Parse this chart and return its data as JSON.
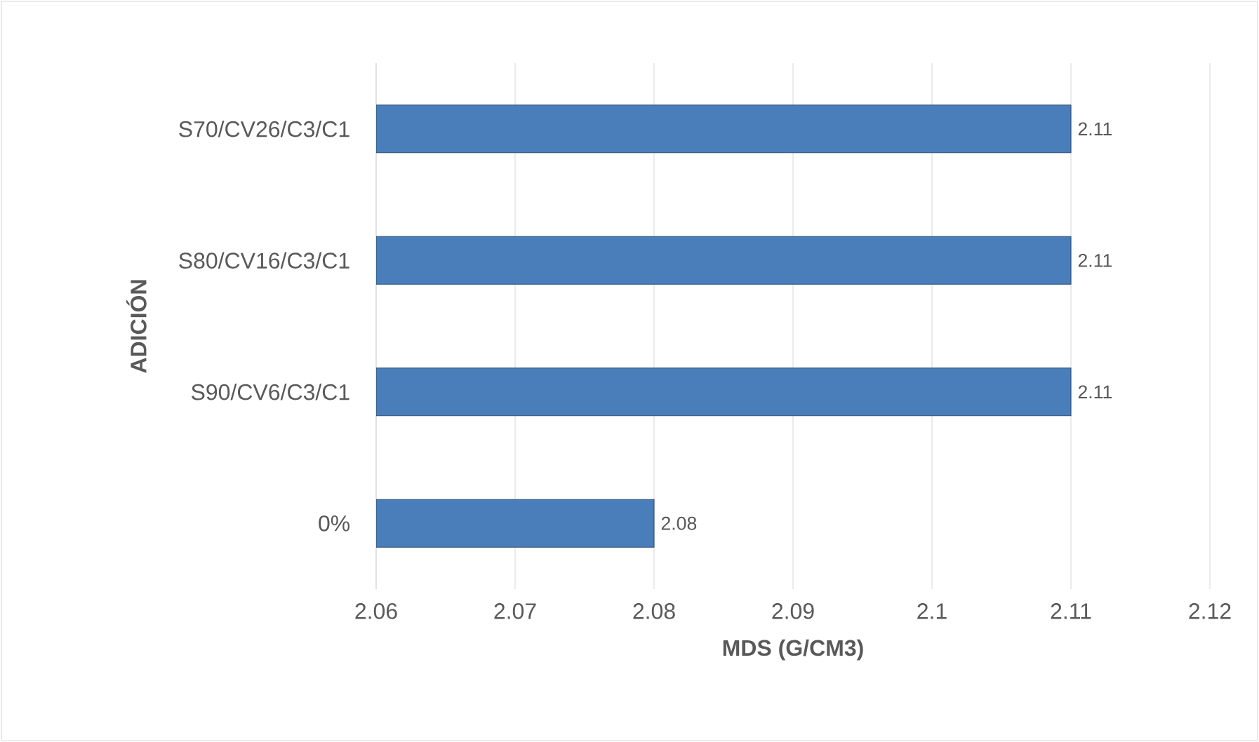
{
  "chart_data": {
    "type": "bar",
    "orientation": "horizontal",
    "xlabel": "MDS (G/CM3)",
    "ylabel": "ADICIÓN",
    "categories": [
      "S70/CV26/C3/C1",
      "S80/CV16/C3/C1",
      "S90/CV6/C3/C1",
      "0%"
    ],
    "values": [
      2.11,
      2.11,
      2.11,
      2.08
    ],
    "color": "#4a7ebb",
    "xlim": [
      2.06,
      2.12
    ],
    "xticks": [
      2.06,
      2.07,
      2.08,
      2.09,
      {
        "value": 2.1,
        "label": "2.1"
      },
      2.11,
      2.12
    ],
    "grid": "x",
    "data_labels": true
  }
}
